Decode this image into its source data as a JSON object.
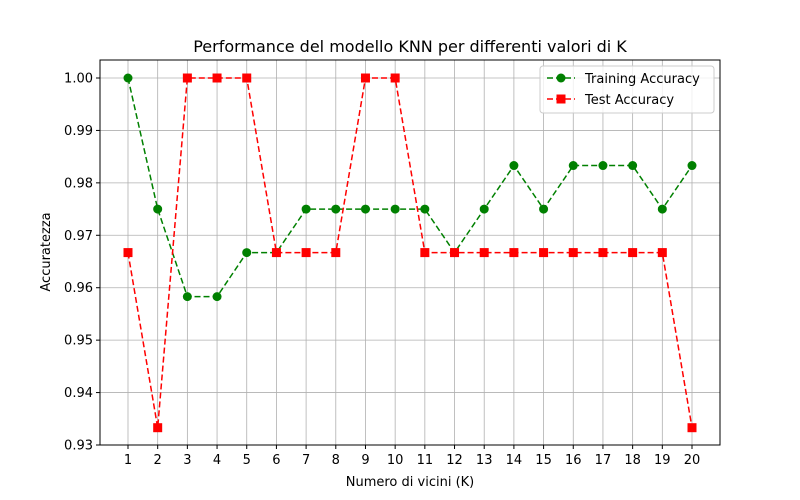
{
  "chart_data": {
    "type": "line",
    "title": "Performance del modello KNN per differenti valori di K",
    "xlabel": "Numero di vicini (K)",
    "ylabel": "Accuratezza",
    "x": [
      1,
      2,
      3,
      4,
      5,
      6,
      7,
      8,
      9,
      10,
      11,
      12,
      13,
      14,
      15,
      16,
      17,
      18,
      19,
      20
    ],
    "xticks": [
      "1",
      "2",
      "3",
      "4",
      "5",
      "6",
      "7",
      "8",
      "9",
      "10",
      "11",
      "12",
      "13",
      "14",
      "15",
      "16",
      "17",
      "18",
      "19",
      "20"
    ],
    "yticks": [
      "0.93",
      "0.94",
      "0.95",
      "0.96",
      "0.97",
      "0.98",
      "0.99",
      "1.00"
    ],
    "ytick_values": [
      0.93,
      0.94,
      0.95,
      0.96,
      0.97,
      0.98,
      0.99,
      1.0
    ],
    "ylim": [
      0.93,
      1.0
    ],
    "grid": true,
    "legend_position": "top-right",
    "series": [
      {
        "name": "Training Accuracy",
        "color": "#008000",
        "marker": "circle",
        "linestyle": "dashed",
        "values": [
          1.0,
          0.975,
          0.9583,
          0.9583,
          0.9667,
          0.9667,
          0.975,
          0.975,
          0.975,
          0.975,
          0.975,
          0.9667,
          0.975,
          0.9833,
          0.975,
          0.9833,
          0.9833,
          0.9833,
          0.975,
          0.9833
        ]
      },
      {
        "name": "Test Accuracy",
        "color": "#ff0000",
        "marker": "square",
        "linestyle": "dashed",
        "values": [
          0.9667,
          0.9333,
          1.0,
          1.0,
          1.0,
          0.9667,
          0.9667,
          0.9667,
          1.0,
          1.0,
          0.9667,
          0.9667,
          0.9667,
          0.9667,
          0.9667,
          0.9667,
          0.9667,
          0.9667,
          0.9667,
          0.9333
        ]
      }
    ]
  }
}
